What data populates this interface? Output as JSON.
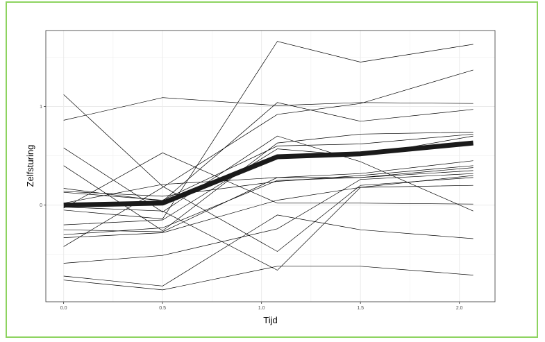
{
  "chart_data": {
    "type": "line",
    "title": "",
    "xlabel": "Tijd",
    "ylabel": "Zelfsturing",
    "x": [
      0.0,
      0.5,
      1.08,
      1.5,
      2.07
    ],
    "x_ticks": [
      0.0,
      0.5,
      1.0,
      1.5,
      2.0
    ],
    "x_tick_labels": [
      "0.0",
      "0.5",
      "1.0",
      "1.5",
      "2.0"
    ],
    "y_ticks": [
      0,
      1
    ],
    "y_tick_labels": [
      "0",
      "1"
    ],
    "xlim": [
      -0.09,
      2.18
    ],
    "ylim": [
      -0.98,
      1.77
    ],
    "grid": true,
    "colors": {
      "individual": "#000000",
      "mean": "#1a1a1a",
      "grid": "#ebebeb",
      "panel_border": "#333333",
      "frame": "#8dd35f"
    },
    "series": [
      {
        "values": [
          1.12,
          0.19,
          -0.47,
          0.2,
          0.28
        ]
      },
      {
        "values": [
          0.86,
          1.09,
          1.01,
          1.04,
          1.03
        ]
      },
      {
        "values": [
          0.58,
          -0.07,
          0.7,
          0.44,
          -0.06
        ]
      },
      {
        "values": [
          0.4,
          -0.26,
          0.63,
          0.72,
          0.74
        ]
      },
      {
        "values": [
          0.17,
          0.04,
          1.04,
          0.85,
          0.97
        ]
      },
      {
        "values": [
          0.13,
          0.05,
          0.6,
          0.62,
          0.72
        ]
      },
      {
        "values": [
          0.14,
          0.09,
          0.24,
          0.3,
          0.4
        ]
      },
      {
        "values": [
          0.02,
          0.21,
          0.28,
          0.32,
          0.45
        ]
      },
      {
        "values": [
          -0.03,
          0.53,
          0.02,
          0.02,
          0.01
        ]
      },
      {
        "values": [
          -0.05,
          -0.14,
          1.66,
          1.45,
          1.63
        ]
      },
      {
        "values": [
          -0.2,
          -0.15,
          0.57,
          0.5,
          0.7
        ]
      },
      {
        "values": [
          -0.25,
          -0.27,
          0.28,
          0.28,
          0.38
        ]
      },
      {
        "values": [
          -0.3,
          -0.23,
          0.25,
          0.28,
          0.35
        ]
      },
      {
        "values": [
          -0.33,
          -0.28,
          0.05,
          0.18,
          0.2
        ]
      },
      {
        "values": [
          -0.42,
          0.18,
          0.92,
          1.03,
          1.37
        ]
      },
      {
        "values": [
          -0.59,
          -0.51,
          -0.24,
          0.26,
          0.32
        ]
      },
      {
        "values": [
          -0.72,
          -0.82,
          -0.1,
          -0.25,
          -0.34
        ]
      },
      {
        "values": [
          -0.76,
          -0.86,
          -0.62,
          -0.62,
          -0.71
        ]
      },
      {
        "values": [
          -0.02,
          -0.06,
          -0.66,
          0.18,
          0.3
        ]
      }
    ],
    "mean_series": {
      "values": [
        0.0,
        0.02,
        0.49,
        0.52,
        0.63
      ]
    }
  }
}
